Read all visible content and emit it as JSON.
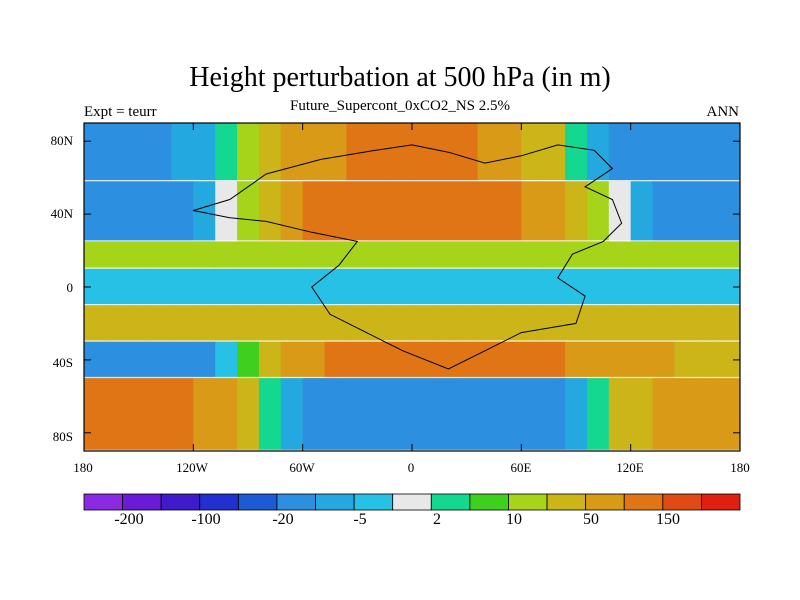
{
  "title": "Height perturbation at 500 hPa (in m)",
  "subtitle": "Future_Supercont_0xCO2_NS 2.5%",
  "left_label": "Expt = teurr",
  "right_label": "ANN",
  "y_ticks": [
    "80N",
    "40N",
    "0",
    "40S",
    "80S"
  ],
  "x_ticks": [
    "180",
    "120W",
    "60W",
    "0",
    "60E",
    "120E",
    "180"
  ],
  "colorbar": {
    "colors": [
      "#8a2be2",
      "#6a1bd8",
      "#3f1bc9",
      "#2130cf",
      "#1d5bd4",
      "#2c8fe0",
      "#24a8e0",
      "#27c1e5",
      "#e8e8e8",
      "#14d890",
      "#3fcf1e",
      "#a5d41a",
      "#cbb518",
      "#d99a18",
      "#e07515",
      "#e04a14",
      "#e01f10"
    ],
    "tick_labels": [
      "-200",
      "-100",
      "-20",
      "-5",
      "2",
      "10",
      "50",
      "150"
    ]
  },
  "chart_data": {
    "type": "heatmap",
    "title": "Height perturbation at 500 hPa (in m)",
    "subtitle": "Future_Supercont_0xCO2_NS 2.5%",
    "xlim": [
      -180,
      180
    ],
    "ylim": [
      -90,
      90
    ],
    "contour_levels": [
      -200,
      -100,
      -20,
      -5,
      2,
      10,
      50,
      150
    ],
    "bands": [
      {
        "lat": [
          58,
          90
        ],
        "zonal": "alternating",
        "west": -40,
        "center": 60,
        "east": -60
      },
      {
        "lat": [
          25,
          58
        ],
        "zonal": "alternating",
        "west": -60,
        "center": 80,
        "east": -40
      },
      {
        "lat": [
          10,
          25
        ],
        "zonal": "weak",
        "value": 8
      },
      {
        "lat": [
          -10,
          10
        ],
        "zonal": "weak",
        "value": -6
      },
      {
        "lat": [
          -30,
          -10
        ],
        "zonal": "weak",
        "value": 10
      },
      {
        "lat": [
          -50,
          -30
        ],
        "zonal": "alternating",
        "west": -60,
        "center": 70,
        "east": 20
      },
      {
        "lat": [
          -90,
          -50
        ],
        "zonal": "alternating",
        "west": 90,
        "center": -60,
        "east": 40
      }
    ]
  }
}
